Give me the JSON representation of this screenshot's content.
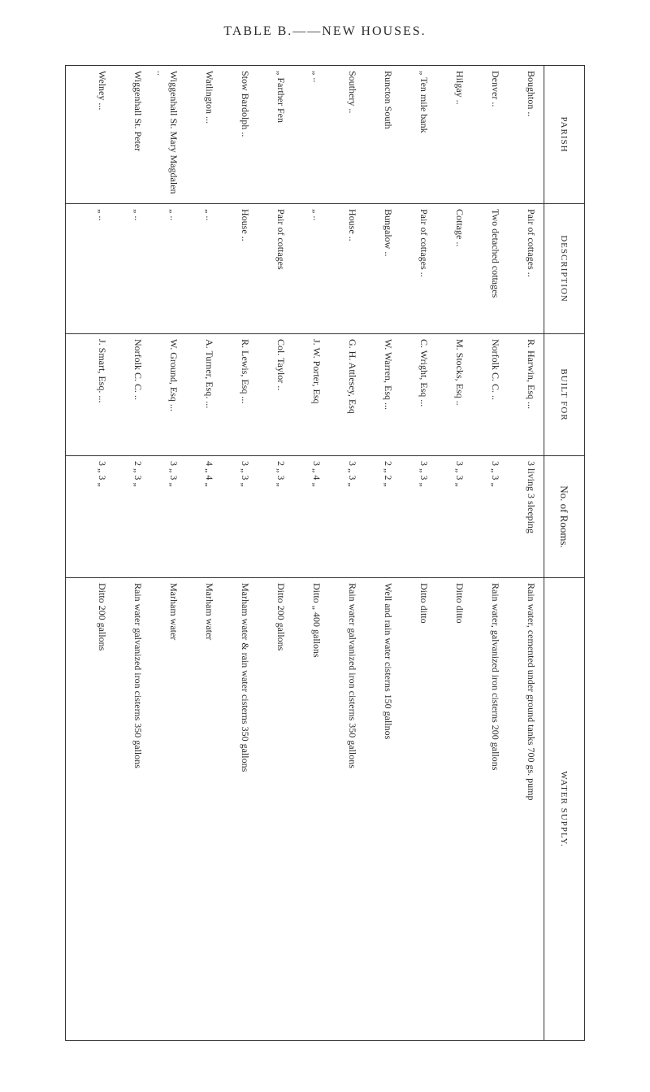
{
  "title": "TABLE B.——NEW HOUSES.",
  "headers": {
    "parish": "PARISH",
    "description": "DESCRIPTION",
    "built_for": "BUILT FOR",
    "rooms": "No. of Rooms.",
    "water": "WATER SUPPLY."
  },
  "rows": [
    {
      "parish": "Boughton   ..",
      "description": "Pair of cottages   ..",
      "built_for": "R. Harwin, Esq ...",
      "rooms": "3 living 3 sleeping",
      "water": "Rain water, cemented under ground tanks 700 gs. pump"
    },
    {
      "parish": "Denver   ..",
      "description": "Two detached cottages",
      "built_for": "Norfolk C. C.   ..",
      "rooms": "3  „  3  „",
      "water": "Rain water, galvanized iron cisterns 200 gallons"
    },
    {
      "parish": "Hilgay   ..",
      "description": "Cottage   ..",
      "built_for": "M. Stocks, Esq   ..",
      "rooms": "3  „  3  „",
      "water": "Ditto        ditto"
    },
    {
      "parish": "„   Ten mile bank",
      "description": "Pair of cottages   ..",
      "built_for": "C. Wright, Esq   ...",
      "rooms": "3  „  3  „",
      "water": "Ditto        ditto"
    },
    {
      "parish": "Runcton South",
      "description": "Bungalow   ..",
      "built_for": "W. Warren, Esq ...",
      "rooms": "2  „  2  „",
      "water": "Well and rain water cisterns 150 gallnos"
    },
    {
      "parish": "Southery   ..",
      "description": "House   ..",
      "built_for": "G. H. Attlesey, Esq",
      "rooms": "3  „  3  „",
      "water": "Rain water galvanized iron cisterns 350 gallons"
    },
    {
      "parish": "„   ..",
      "description": "„   ..",
      "built_for": "J. W. Porter, Esq",
      "rooms": "3  „  4  „",
      "water": "Ditto  „  400 gallons"
    },
    {
      "parish": "„  Farther Fen",
      "description": "Pair of cottages",
      "built_for": "Col. Taylor   ..",
      "rooms": "2  „  3  „",
      "water": "Ditto    200 gallons"
    },
    {
      "parish": "Stow Bardolph   ..",
      "description": "House   ..",
      "built_for": "R. Lewis, Esq   ...",
      "rooms": "3  „  3  „",
      "water": "Marham water & rain water cisterns 350 gallons"
    },
    {
      "parish": "Watlington   ...",
      "description": "„   ..",
      "built_for": "A. Turner, Esq.  ...",
      "rooms": "4  „  4  „",
      "water": "Marham water"
    },
    {
      "parish": "Wiggenhall St. Mary Magdalen   ..",
      "description": "„   ..",
      "built_for": "W. Ground, Esq ...",
      "rooms": "3  „  3  „",
      "water": "Marham water"
    },
    {
      "parish": "Wiggenhall St. Peter",
      "description": "„   ..",
      "built_for": "Norfolk C. C.   ..",
      "rooms": "2  „  3  „",
      "water": "Rain water galvanized iron cisterns 350 gallons"
    },
    {
      "parish": "Welney   ...",
      "description": "„   ..",
      "built_for": "J. Smart, Esq.  ...",
      "rooms": "3  „  3  „",
      "water": "Ditto    200 gallons"
    }
  ]
}
